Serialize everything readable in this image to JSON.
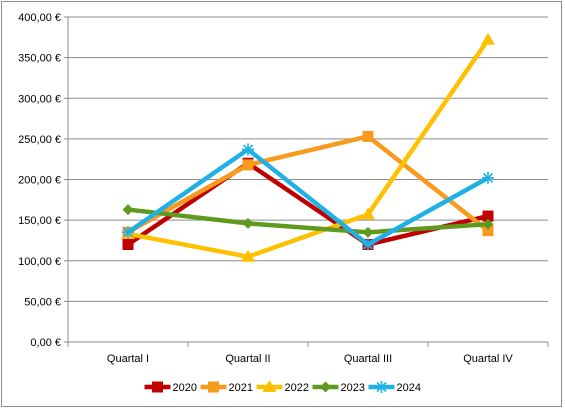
{
  "chart_data": {
    "type": "line",
    "title": "",
    "xlabel": "",
    "ylabel": "",
    "categories": [
      "Quartal I",
      "Quartal II",
      "Quartal III",
      "Quartal IV"
    ],
    "ylim": [
      0,
      400
    ],
    "ytick_step": 50,
    "ytick_labels": [
      "0,00 €",
      "50,00 €",
      "100,00 €",
      "150,00 €",
      "200,00 €",
      "250,00 €",
      "300,00 €",
      "350,00 €",
      "400,00 €"
    ],
    "grid": true,
    "legend_position": "bottom",
    "series": [
      {
        "name": "2020",
        "values": [
          120,
          220,
          120,
          155
        ],
        "color": "#c00000",
        "marker": "square"
      },
      {
        "name": "2021",
        "values": [
          135,
          218,
          253,
          137
        ],
        "color": "#f79a1e",
        "marker": "square"
      },
      {
        "name": "2022",
        "values": [
          133,
          105,
          157,
          372
        ],
        "color": "#ffc000",
        "marker": "triangle"
      },
      {
        "name": "2023",
        "values": [
          163,
          146,
          135,
          145
        ],
        "color": "#5f9a1f",
        "marker": "diamond"
      },
      {
        "name": "2024",
        "values": [
          135,
          237,
          120,
          202
        ],
        "color": "#1fb1e6",
        "marker": "star"
      }
    ]
  }
}
